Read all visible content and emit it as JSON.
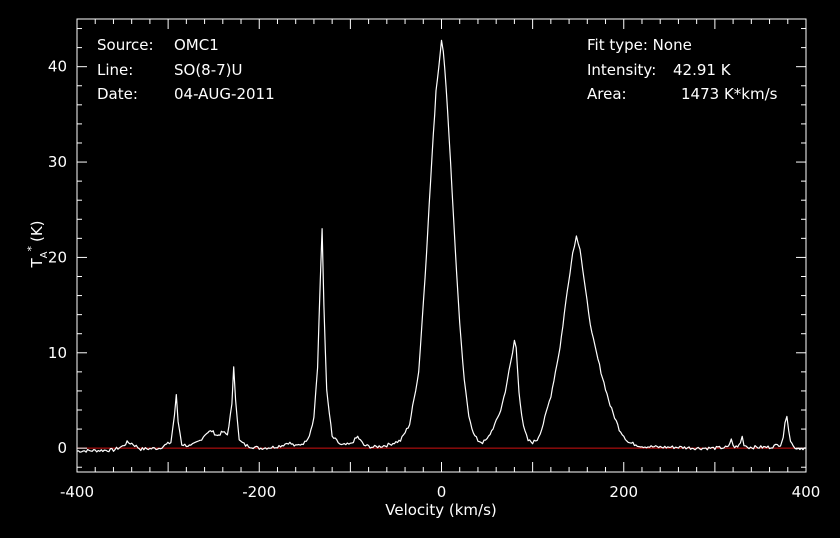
{
  "header": {
    "source_label": "Source:",
    "source_value": "OMC1",
    "line_label": "Line:",
    "line_value": "SO(8-7)U",
    "date_label": "Date:",
    "date_value": "04-AUG-2011",
    "fit_type": "Fit type: None",
    "intensity_label": "Intensity:",
    "intensity_value": "42.91 K",
    "area_label": "Area:",
    "area_value": "1473 K*km/s"
  },
  "chart_data": {
    "type": "line",
    "title": "",
    "xlabel": "Velocity (km/s)",
    "ylabel": "T_A* (K)",
    "ylabel_main": "T",
    "ylabel_sub": "A",
    "ylabel_sup": "*",
    "ylabel_unit": "(K)",
    "xlim": [
      -400,
      400
    ],
    "ylim": [
      -2.5,
      45
    ],
    "x_ticks": [
      -400,
      -200,
      0,
      200,
      400
    ],
    "x_tick_labels": [
      "-400",
      "-200",
      "0",
      "200",
      "400"
    ],
    "y_ticks": [
      0,
      10,
      20,
      30,
      40
    ],
    "y_tick_labels": [
      "0",
      "10",
      "20",
      "30",
      "40"
    ],
    "grid": false,
    "baseline_y": 0,
    "colors": {
      "background": "#000000",
      "trace": "#ffffff",
      "baseline": "#d01010"
    },
    "series": [
      {
        "x": [
          -400,
          -360,
          -350,
          -345,
          -340,
          -330,
          -310,
          -297,
          -293,
          -291,
          -289,
          -285,
          -275,
          -265,
          -258,
          -252,
          -246,
          -240,
          -235,
          -230,
          -228,
          -226,
          -222,
          -215,
          -200,
          -185,
          -175,
          -168,
          -160,
          -150,
          -145,
          -140,
          -136,
          -133,
          -131,
          -129,
          -126,
          -120,
          -110,
          -100,
          -95,
          -92,
          -89,
          -85,
          -75,
          -60,
          -45,
          -35,
          -25,
          -18,
          -12,
          -6,
          -3,
          0,
          2,
          5,
          10,
          15,
          20,
          25,
          30,
          35,
          40,
          45,
          50,
          55,
          60,
          65,
          70,
          74,
          78,
          80,
          82,
          83,
          85,
          88,
          90,
          95,
          100,
          105,
          110,
          120,
          130,
          138,
          144,
          148,
          152,
          158,
          165,
          175,
          185,
          195,
          205,
          220,
          240,
          260,
          280,
          300,
          315,
          318,
          320,
          325,
          328,
          330,
          332,
          336,
          360,
          372,
          375,
          377,
          379,
          381,
          383,
          386,
          390,
          400
        ],
        "y": [
          -0.3,
          -0.2,
          0.2,
          0.6,
          0.5,
          -0.1,
          0.0,
          0.6,
          3.5,
          5.5,
          2.8,
          0.4,
          0.2,
          0.8,
          1.6,
          1.8,
          1.3,
          1.7,
          1.4,
          4.5,
          8.6,
          5.2,
          0.8,
          0.3,
          0.0,
          0.1,
          0.3,
          0.6,
          0.2,
          0.6,
          1.4,
          3.2,
          8.5,
          17.5,
          23.0,
          15.0,
          6.0,
          1.2,
          0.3,
          0.4,
          0.9,
          1.2,
          0.8,
          0.3,
          0.1,
          0.3,
          0.8,
          2.5,
          8.0,
          18.0,
          28.0,
          37.5,
          40.0,
          42.9,
          41.5,
          38.0,
          30.0,
          21.0,
          13.0,
          7.0,
          3.5,
          1.5,
          0.8,
          0.6,
          0.9,
          1.8,
          2.8,
          4.0,
          6.0,
          8.0,
          10.0,
          11.3,
          10.5,
          9.0,
          6.0,
          3.5,
          2.2,
          0.8,
          0.6,
          0.9,
          2.0,
          5.5,
          10.5,
          16.5,
          20.5,
          22.2,
          21.0,
          16.5,
          12.0,
          8.0,
          4.5,
          2.0,
          0.6,
          0.2,
          0.1,
          0.1,
          0.0,
          0.0,
          0.1,
          1.0,
          0.2,
          0.1,
          0.6,
          1.2,
          0.4,
          0.1,
          0.1,
          0.4,
          1.2,
          2.5,
          3.5,
          2.0,
          0.8,
          0.2,
          0.0,
          0.0
        ]
      }
    ]
  }
}
